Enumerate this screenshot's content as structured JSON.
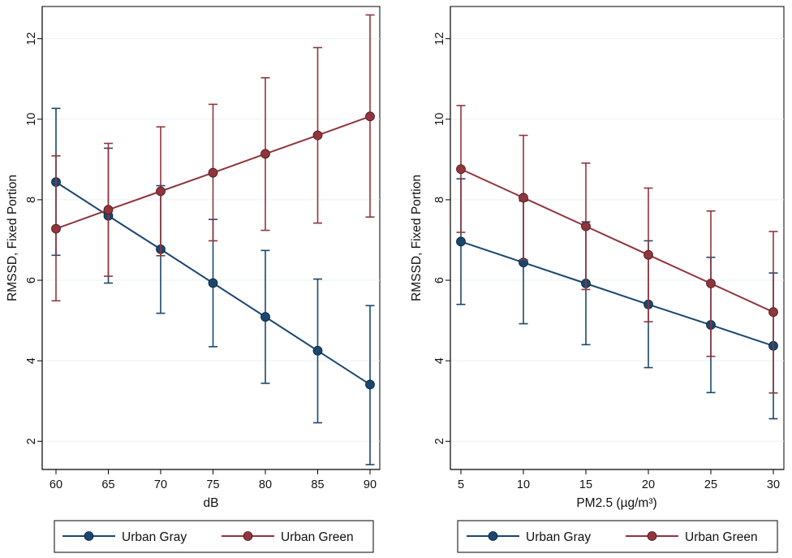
{
  "chart_data": [
    {
      "type": "line",
      "xlabel": "dB",
      "ylabel": "RMSSD, Fixed Portion",
      "x": [
        60,
        65,
        70,
        75,
        80,
        85,
        90
      ],
      "xlim": [
        60,
        90
      ],
      "ylim": [
        1.3,
        12.8
      ],
      "xticks": [
        "60",
        "65",
        "70",
        "75",
        "80",
        "85",
        "90"
      ],
      "yticks": [
        "2",
        "4",
        "6",
        "8",
        "10",
        "12"
      ],
      "series": [
        {
          "name": "Urban Gray",
          "color": "#1a476f",
          "values": [
            8.44,
            7.6,
            6.77,
            5.93,
            5.09,
            4.25,
            3.41
          ],
          "lower": [
            6.62,
            5.93,
            5.18,
            4.35,
            3.44,
            2.46,
            1.42
          ],
          "upper": [
            10.27,
            9.28,
            8.35,
            7.51,
            6.74,
            6.03,
            5.37
          ]
        },
        {
          "name": "Urban Green",
          "color": "#90353b",
          "values": [
            7.28,
            7.75,
            8.21,
            8.67,
            9.14,
            9.6,
            10.07
          ],
          "lower": [
            5.49,
            6.1,
            6.61,
            6.98,
            7.24,
            7.42,
            7.57
          ],
          "upper": [
            9.09,
            9.4,
            9.81,
            10.37,
            11.03,
            11.78,
            12.59
          ]
        }
      ],
      "legend": "bottom"
    },
    {
      "type": "line",
      "xlabel": "PM2.5 (µg/m³)",
      "ylabel": "RMSSD, Fixed Portion",
      "x": [
        5,
        10,
        15,
        20,
        25,
        30
      ],
      "xlim": [
        5,
        30
      ],
      "ylim": [
        1.3,
        12.8
      ],
      "xticks": [
        "5",
        "10",
        "15",
        "20",
        "25",
        "30"
      ],
      "yticks": [
        "2",
        "4",
        "6",
        "8",
        "10",
        "12"
      ],
      "series": [
        {
          "name": "Urban Gray",
          "color": "#1a476f",
          "values": [
            6.96,
            6.44,
            5.92,
            5.4,
            4.89,
            4.37
          ],
          "lower": [
            5.4,
            4.92,
            4.4,
            3.83,
            3.21,
            2.56
          ],
          "upper": [
            8.52,
            7.97,
            7.45,
            6.98,
            6.57,
            6.18
          ]
        },
        {
          "name": "Urban Green",
          "color": "#90353b",
          "values": [
            8.76,
            8.05,
            7.34,
            6.63,
            5.92,
            5.21
          ],
          "lower": [
            7.19,
            6.51,
            5.77,
            4.97,
            4.11,
            3.2
          ],
          "upper": [
            10.34,
            9.6,
            8.91,
            8.29,
            7.72,
            7.21
          ]
        }
      ],
      "legend": "bottom"
    }
  ]
}
